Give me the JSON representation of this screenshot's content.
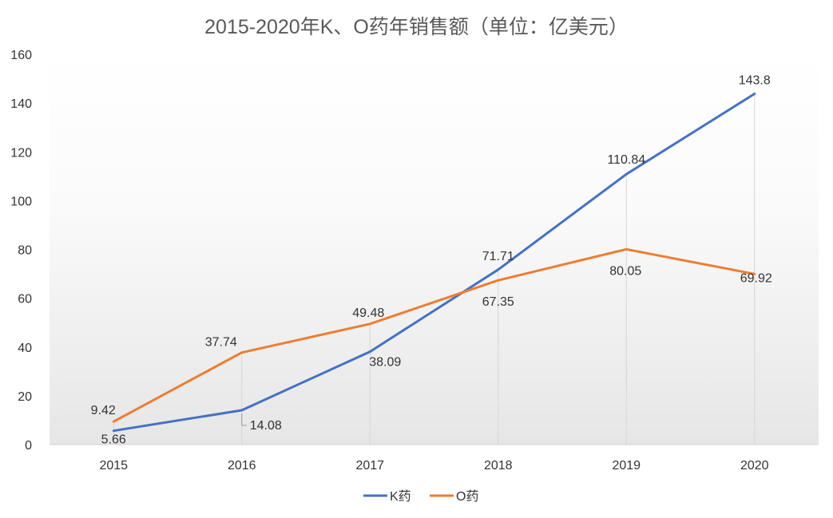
{
  "chart_data": {
    "type": "line",
    "title": "2015-2020年K、O药年销售额（单位：亿美元）",
    "categories": [
      "2015",
      "2016",
      "2017",
      "2018",
      "2019",
      "2020"
    ],
    "series": [
      {
        "name": "K药",
        "color": "#4472C4",
        "values": [
          5.66,
          14.08,
          38.09,
          71.71,
          110.84,
          143.8
        ],
        "labels": [
          "5.66",
          "14.08",
          "38.09",
          "71.71",
          "110.84",
          "143.8"
        ]
      },
      {
        "name": "O药",
        "color": "#ED7D31",
        "values": [
          9.42,
          37.74,
          49.48,
          67.35,
          80.05,
          69.92
        ],
        "labels": [
          "9.42",
          "37.74",
          "49.48",
          "67.35",
          "80.05",
          "69.92"
        ]
      }
    ],
    "y_ticks": [
      "0",
      "20",
      "40",
      "60",
      "80",
      "100",
      "120",
      "140",
      "160"
    ],
    "ylim": [
      0,
      160
    ],
    "xlabel": "",
    "ylabel": "",
    "legend_position": "bottom",
    "grid": false,
    "drop_lines": true
  }
}
